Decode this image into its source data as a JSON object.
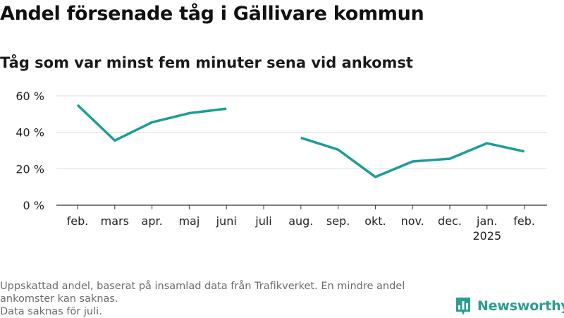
{
  "title": "Andel försenade tåg i Gällivare kommun",
  "subtitle": "Tåg som var minst fem minuter sena vid ankomst",
  "footer": {
    "line1": "Uppskattad andel, baserat på insamlad data från Trafikverket. En mindre andel ankomster kan saknas.",
    "line2": "Data saknas för juli."
  },
  "brand": {
    "name": "Newsworthy",
    "icon": "bar-chart-logo-icon",
    "color": "#2a9d8f"
  },
  "chart_data": {
    "type": "line",
    "categories": [
      "feb.",
      "mars",
      "apr.",
      "maj",
      "juni",
      "juli",
      "aug.",
      "sep.",
      "okt.",
      "nov.",
      "dec.",
      "jan.",
      "feb."
    ],
    "year_labels": [
      "",
      "",
      "",
      "",
      "",
      "",
      "",
      "",
      "",
      "",
      "",
      "2025",
      ""
    ],
    "series": [
      {
        "values": [
          55,
          35.5,
          45.5,
          50.5,
          53,
          null,
          37,
          30.5,
          15.5,
          24,
          25.5,
          34,
          29.5
        ]
      }
    ],
    "ylim": [
      0,
      60
    ],
    "yticks": [
      0,
      20,
      40,
      60
    ],
    "ytick_labels": [
      "0 %",
      "20 %",
      "40 %",
      "60 %"
    ],
    "grid": true,
    "colors": {
      "line": "#1a9e96",
      "grid": "#dddddd",
      "axis": "#333333"
    }
  }
}
